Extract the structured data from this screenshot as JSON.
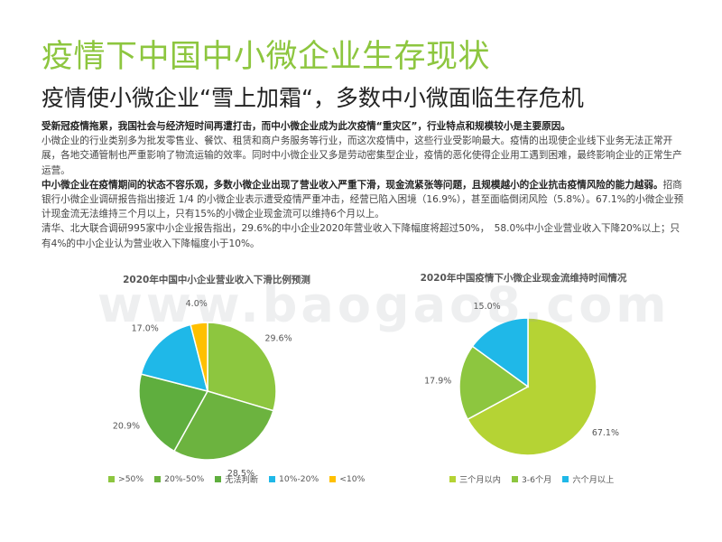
{
  "title": "疫情下中国中小微企业生存现状",
  "subtitle": "疫情使小微企业“雪上加霜“，多数中小微面临生存危机",
  "paragraphs": [
    {
      "bold": "受新冠疫情拖累，我国社会与经济短时间再遭打击，而中小微企业成为此次疫情“重灾区”，行业特点和规模较小是主要原因。",
      "text": ""
    },
    {
      "bold": "",
      "text": "小微企业的行业类别多为批发零售业、餐饮、租赁和商户务服务等行业，而这次疫情中，这些行业受影响最大。疫情的出现使企业线下业务无法正常开展，各地交通管制也严重影响了物流运输的效率。同时中小微企业又多是劳动密集型企业，疫情的恶化使得企业用工遇到困难，最终影响企业的正常生产运营。"
    },
    {
      "bold": "中小微企业在疫情期间的状态不容乐观，多数小微企业出现了营业收入严重下滑，现金流紧张等问题，且规模越小的企业抗击疫情风险的能力越弱。",
      "text": "招商银行小微企业调研报告指出接近 1/4 的小微企业表示遭受疫情严重冲击，经营已陷入困境（16.9%），甚至面临倒闭风险（5.8%）。67.1%的小微企业预计现金流无法维持三个月以上，只有15%的小微企业现金流可以维持6个月以上。"
    },
    {
      "bold": "",
      "text": "清华、北大联合调研995家中小企业报告指出，29.6%的中小企业2020年营业收入下降幅度将超过50%，　58.0%中小企业营业收入下降20%以上；只有4%的中小企业认为营业收入下降幅度小于10%。"
    }
  ],
  "watermark": "www.baogao8.com",
  "colors": {
    "title": "#8DC63F",
    "green_light": "#8DC63F",
    "green_mid": "#5FAE3E",
    "cyan": "#1FB8E8",
    "yellow": "#FFC000",
    "lime": "#B5D334"
  },
  "chart_data": [
    {
      "type": "pie",
      "title": "2020年中国中小企业营业收入下滑比例预测",
      "categories": [
        ">50%",
        "20%-50%",
        "无法判断",
        "10%-20%",
        "<10%"
      ],
      "values": [
        29.6,
        28.5,
        20.9,
        17.0,
        4.0
      ],
      "value_labels": [
        "29.6%",
        "28.5%",
        "20.9%",
        "17.0%",
        "4.0%"
      ],
      "colors": [
        "#8DC63F",
        "#6CB33F",
        "#5FAE3E",
        "#1FB8E8",
        "#FFC000"
      ],
      "legend": "bottom"
    },
    {
      "type": "pie",
      "title": "2020年中国疫情下小微企业现金流维持时间情况",
      "categories": [
        "三个月以内",
        "3-6个月",
        "六个月以上"
      ],
      "values": [
        67.1,
        17.9,
        15.0
      ],
      "value_labels": [
        "67.1%",
        "17.9%",
        "15.0%"
      ],
      "colors": [
        "#B5D334",
        "#8DC63F",
        "#1FB8E8"
      ],
      "legend": "bottom"
    }
  ]
}
